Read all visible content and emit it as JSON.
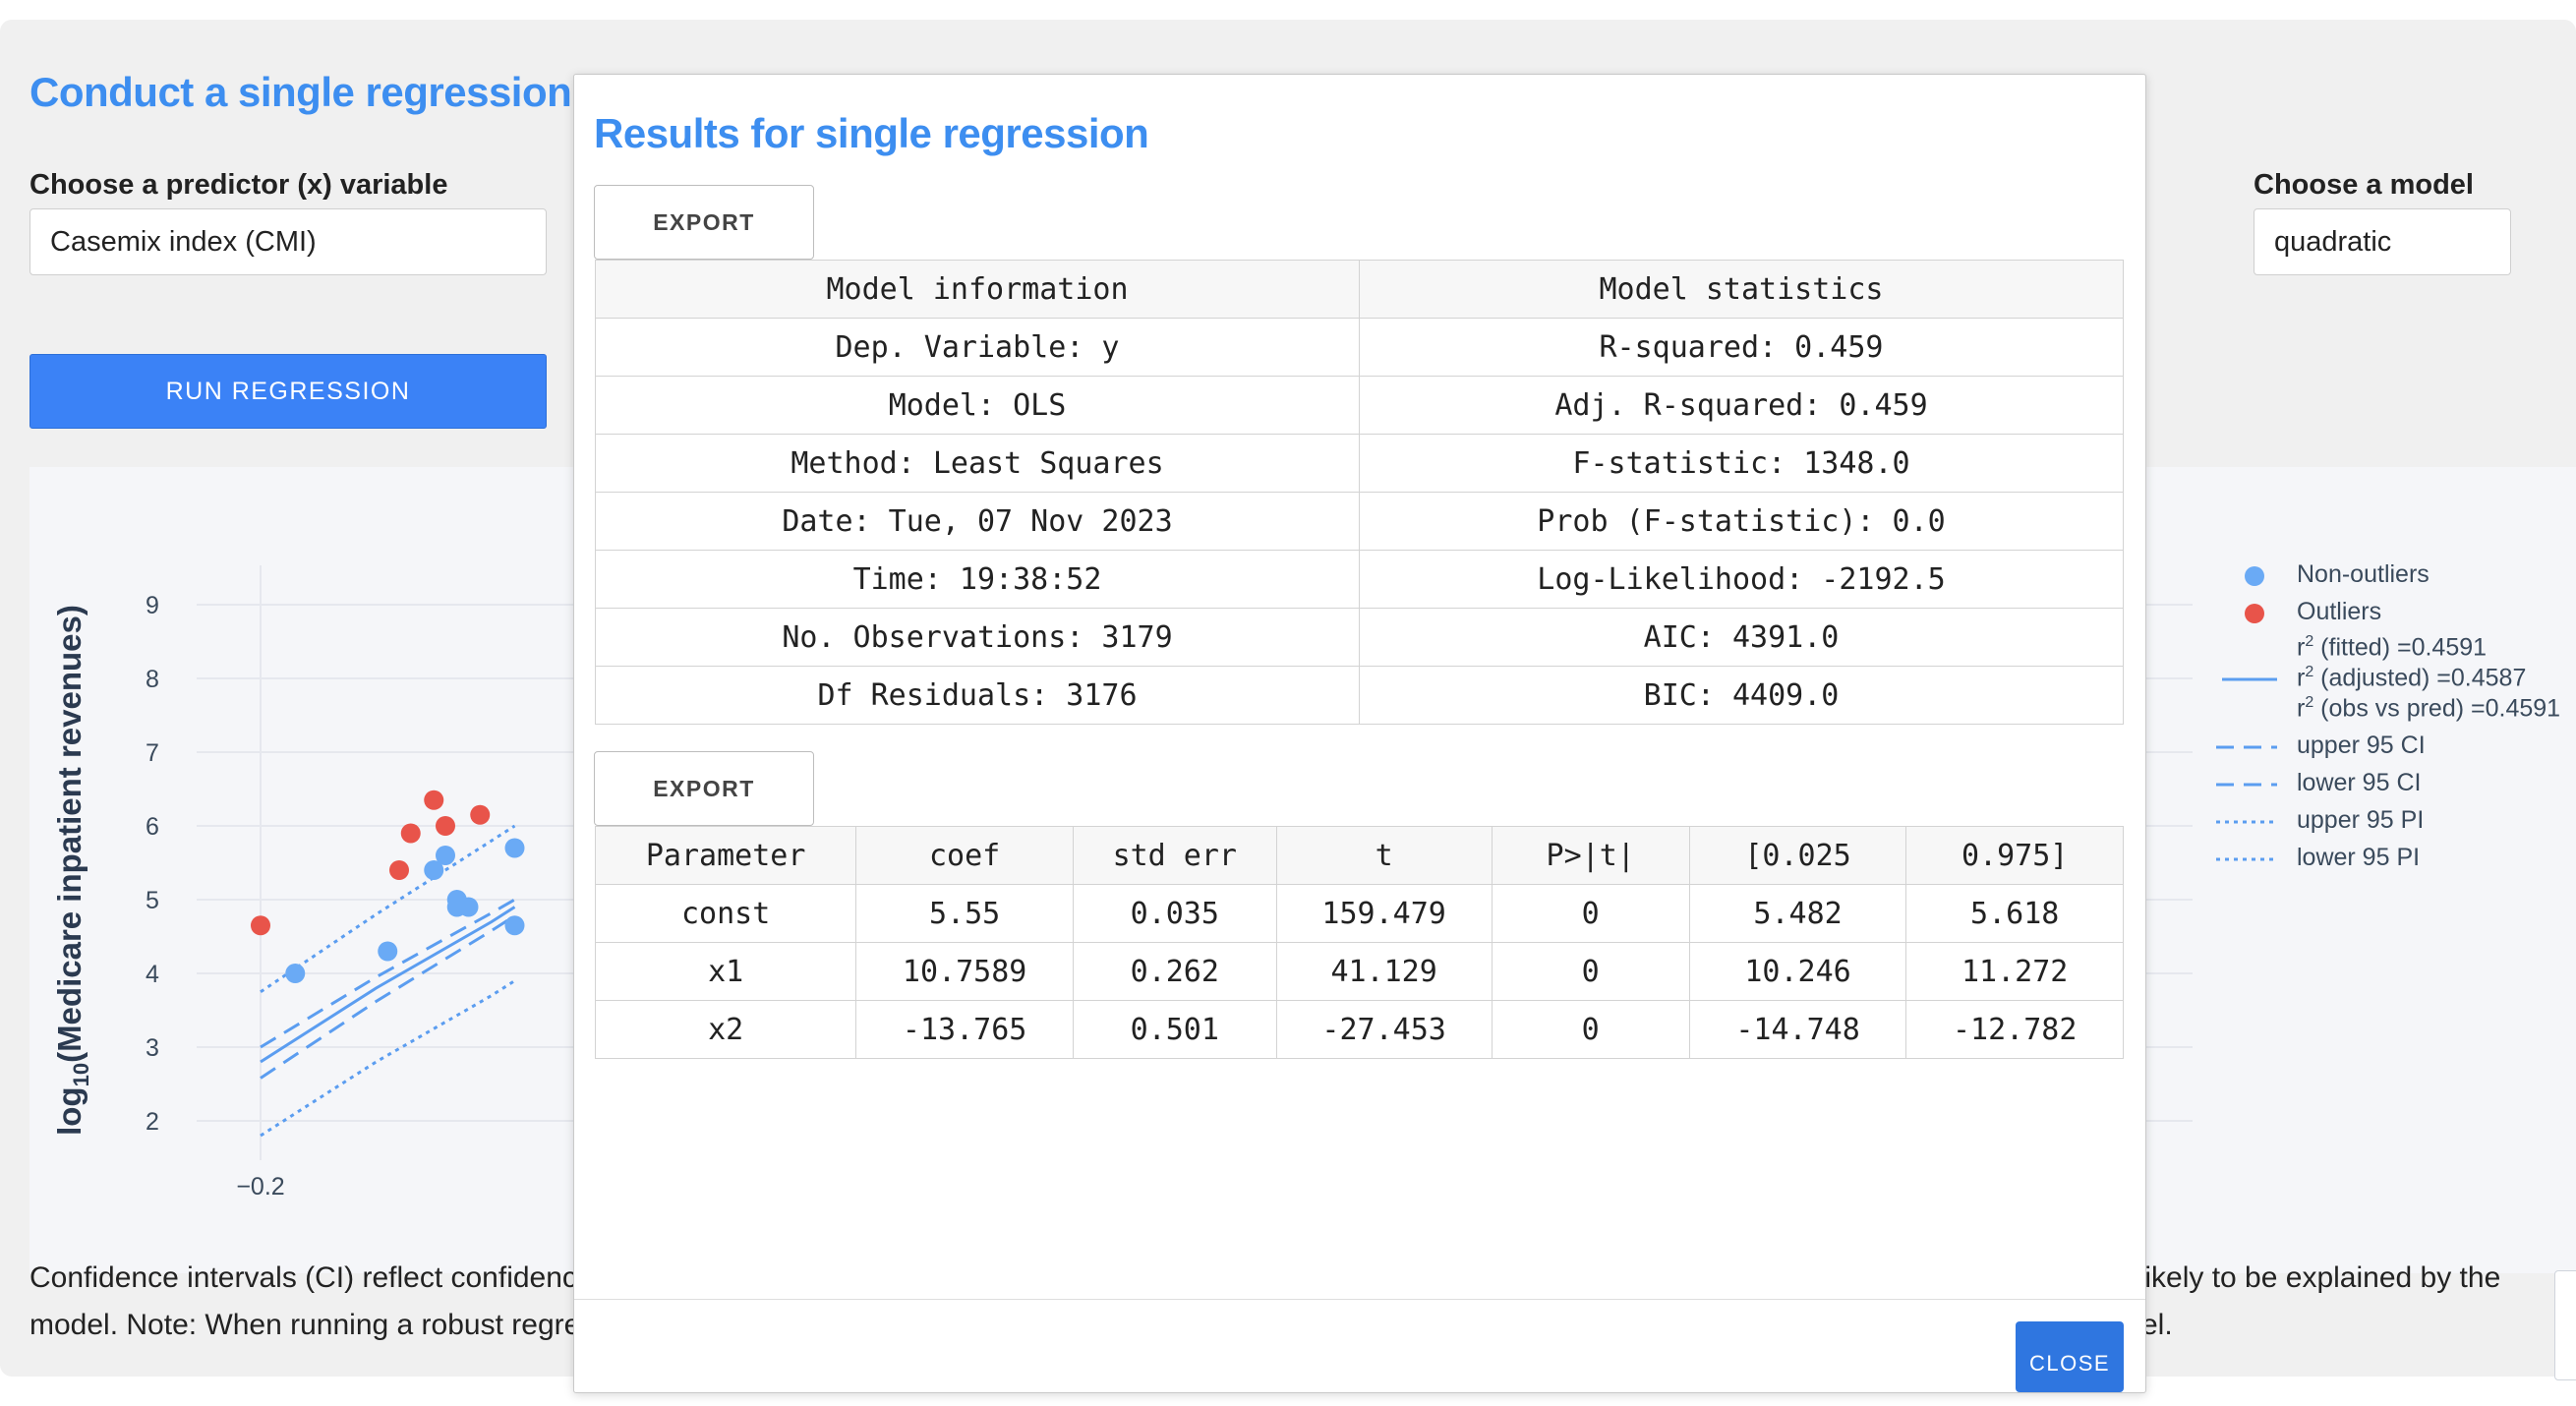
{
  "page": {
    "title": "Conduct a single regression",
    "predictor": {
      "label": "Choose a predictor (x) variable",
      "value": "Casemix index (CMI)"
    },
    "model": {
      "label": "Choose a model",
      "value": "quadratic"
    },
    "run_button": "RUN REGRESSION",
    "caption_left_1": "Confidence intervals (CI) reflect confidenc",
    "caption_left_2": "model. Note: When running a robust regre",
    "caption_right_1": "nlikely to be explained by the",
    "caption_right_2": "el."
  },
  "plot": {
    "ylabel_prefix": "log",
    "ylabel_sub": "10",
    "ylabel_suffix": "(Medicare inpatient revenues)",
    "yticks": [
      "9",
      "8",
      "7",
      "6",
      "5",
      "4",
      "3",
      "2"
    ],
    "xticks": [
      "−0.2"
    ],
    "legend": {
      "non_outliers": "Non-outliers",
      "outliers": "Outliers",
      "r2_fitted": " (fitted) =0.4591",
      "r2_adjusted": " (adjusted) =0.4587",
      "r2_obs": " (obs vs pred) =0.4591",
      "r2_sym": "r",
      "r2_sup": "2",
      "upper_ci": "upper 95 CI",
      "lower_ci": "lower 95 CI",
      "upper_pi": "upper 95 PI",
      "lower_pi": "lower 95 PI"
    },
    "colors": {
      "non_outliers": "#6aaaf5",
      "outliers": "#e8544a",
      "fit": "#5b9df0"
    }
  },
  "chart_data": {
    "type": "scatter",
    "ylim": [
      1.5,
      9.5
    ],
    "x_visible": [
      -0.22,
      0.11
    ],
    "series": [
      {
        "name": "Non-outliers",
        "points": [
          [
            -0.17,
            4.0
          ],
          [
            -0.09,
            4.3
          ],
          [
            -0.04,
            5.6
          ],
          [
            -0.05,
            5.4
          ],
          [
            -0.03,
            5.0
          ],
          [
            -0.02,
            4.9
          ],
          [
            -0.03,
            4.9
          ],
          [
            0.02,
            4.65
          ],
          [
            0.02,
            5.7
          ]
        ]
      },
      {
        "name": "Outliers",
        "points": [
          [
            -0.2,
            4.65
          ],
          [
            -0.05,
            6.35
          ],
          [
            -0.07,
            5.9
          ],
          [
            -0.04,
            6.0
          ],
          [
            -0.08,
            5.4
          ],
          [
            -0.01,
            6.15
          ]
        ]
      },
      {
        "name": "r2 (adjusted) =0.4587",
        "style": "solid",
        "points": [
          [
            -0.2,
            2.8
          ],
          [
            -0.1,
            3.8
          ],
          [
            0.0,
            4.7
          ],
          [
            0.02,
            4.9
          ]
        ]
      },
      {
        "name": "upper 95 CI",
        "style": "dashed",
        "points": [
          [
            -0.2,
            3.0
          ],
          [
            -0.1,
            3.95
          ],
          [
            0.0,
            4.82
          ],
          [
            0.02,
            5.0
          ]
        ]
      },
      {
        "name": "lower 95 CI",
        "style": "dashed",
        "points": [
          [
            -0.2,
            2.58
          ],
          [
            -0.1,
            3.62
          ],
          [
            0.0,
            4.58
          ],
          [
            0.02,
            4.78
          ]
        ]
      },
      {
        "name": "upper 95 PI",
        "style": "dotted",
        "points": [
          [
            -0.2,
            3.75
          ],
          [
            -0.1,
            4.8
          ],
          [
            0.0,
            5.8
          ],
          [
            0.02,
            6.0
          ]
        ]
      },
      {
        "name": "lower 95 PI",
        "style": "dotted",
        "points": [
          [
            -0.2,
            1.8
          ],
          [
            -0.1,
            2.8
          ],
          [
            0.0,
            3.7
          ],
          [
            0.02,
            3.9
          ]
        ]
      }
    ]
  },
  "modal": {
    "title": "Results for single regression",
    "export_label": "EXPORT",
    "close_label": "CLOSE",
    "info_table": {
      "headers": [
        "Model information",
        "Model statistics"
      ],
      "rows": [
        [
          "Dep. Variable: y",
          "R-squared: 0.459"
        ],
        [
          "Model: OLS",
          "Adj. R-squared: 0.459"
        ],
        [
          "Method: Least Squares",
          "F-statistic: 1348.0"
        ],
        [
          "Date: Tue, 07 Nov 2023",
          "Prob (F-statistic): 0.0"
        ],
        [
          "Time: 19:38:52",
          "Log-Likelihood: -2192.5"
        ],
        [
          "No. Observations: 3179",
          "AIC: 4391.0"
        ],
        [
          "Df Residuals: 3176",
          "BIC: 4409.0"
        ]
      ]
    },
    "coef_table": {
      "headers": [
        "Parameter",
        "coef",
        "std err",
        "t",
        "P>|t|",
        "[0.025",
        "0.975]"
      ],
      "rows": [
        [
          "const",
          "5.55",
          "0.035",
          "159.479",
          "0",
          "5.482",
          "5.618"
        ],
        [
          "x1",
          "10.7589",
          "0.262",
          "41.129",
          "0",
          "10.246",
          "11.272"
        ],
        [
          "x2",
          "-13.765",
          "0.501",
          "-27.453",
          "0",
          "-14.748",
          "-12.782"
        ]
      ]
    }
  }
}
